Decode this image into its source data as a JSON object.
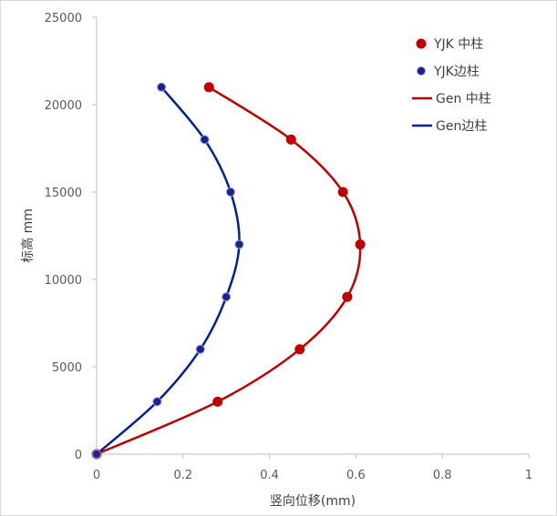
{
  "chart_data": {
    "type": "scatter",
    "xlabel": "竖向位移(mm)",
    "ylabel": "标高 mm",
    "xlim": [
      0,
      1
    ],
    "ylim": [
      0,
      25000
    ],
    "x_ticks": [
      "0",
      "0.2",
      "0.4",
      "0.6",
      "0.8",
      "1"
    ],
    "y_ticks": [
      "0",
      "5000",
      "10000",
      "15000",
      "20000",
      "25000"
    ],
    "grid": false,
    "legend_position": "top-right",
    "series": [
      {
        "name": "YJK 中柱",
        "kind": "markers",
        "color": "#c00000",
        "points": [
          [
            0,
            0
          ],
          [
            0.28,
            3000
          ],
          [
            0.47,
            6000
          ],
          [
            0.58,
            9000
          ],
          [
            0.61,
            12000
          ],
          [
            0.57,
            15000
          ],
          [
            0.45,
            18000
          ],
          [
            0.26,
            21000
          ]
        ]
      },
      {
        "name": "YJK边柱",
        "kind": "markers",
        "color": "#1f1f8f",
        "points": [
          [
            0,
            0
          ],
          [
            0.14,
            3000
          ],
          [
            0.24,
            6000
          ],
          [
            0.3,
            9000
          ],
          [
            0.33,
            12000
          ],
          [
            0.31,
            15000
          ],
          [
            0.25,
            18000
          ],
          [
            0.15,
            21000
          ]
        ]
      },
      {
        "name": "Gen 中柱",
        "kind": "line",
        "color": "#c00000",
        "points": [
          [
            0,
            0
          ],
          [
            0.28,
            3000
          ],
          [
            0.47,
            6000
          ],
          [
            0.58,
            9000
          ],
          [
            0.61,
            12000
          ],
          [
            0.57,
            15000
          ],
          [
            0.45,
            18000
          ],
          [
            0.26,
            21000
          ]
        ]
      },
      {
        "name": "Gen边柱",
        "kind": "line",
        "color": "#00209f",
        "points": [
          [
            0,
            0
          ],
          [
            0.14,
            3000
          ],
          [
            0.24,
            6000
          ],
          [
            0.3,
            9000
          ],
          [
            0.33,
            12000
          ],
          [
            0.31,
            15000
          ],
          [
            0.25,
            18000
          ],
          [
            0.15,
            21000
          ]
        ]
      }
    ]
  }
}
